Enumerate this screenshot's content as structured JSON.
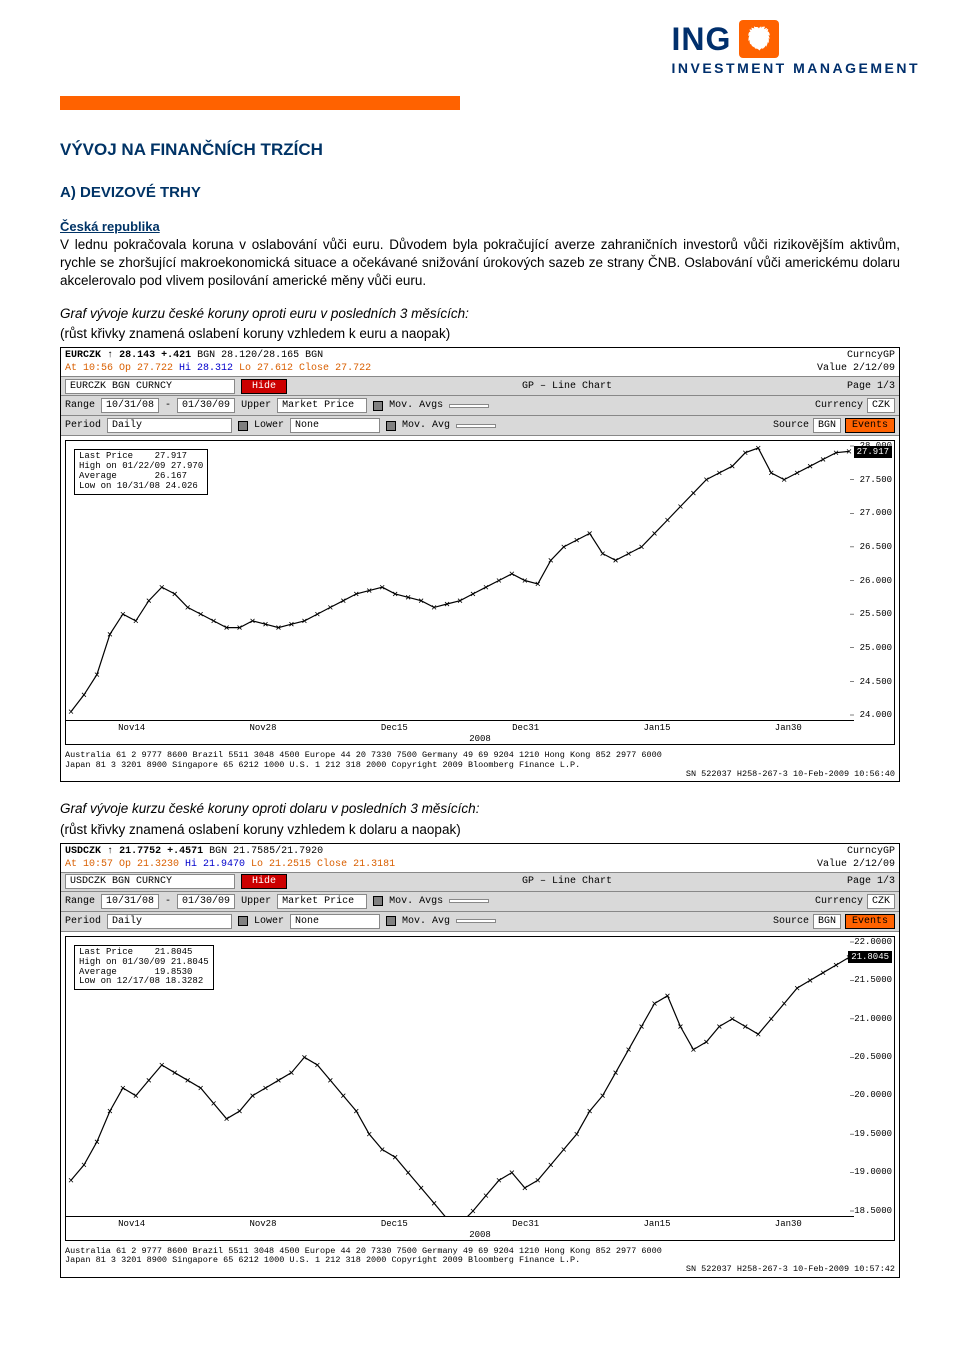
{
  "logo": {
    "brand": "ING",
    "subtitle": "INVESTMENT MANAGEMENT"
  },
  "title": "VÝVOJ NA FINANČNÍCH TRZÍCH",
  "sectionA": "A) DEVIZOVÉ TRHY",
  "country": "Česká republika",
  "para1": "V lednu pokračovala koruna v oslabování vůči euru. Důvodem byla pokračující averze zahraničních investorů vůči rizikovějším aktivům, rychle se zhoršující makroekonomická situace a očekávané snižování úrokových sazeb ze strany ČNB. Oslabování vůči americkému dolaru akcelerovalo pod vlivem posilování americké měny vůči euru.",
  "chart1_caption": "Graf vývoje kurzu české koruny oproti euru v posledních 3 měsících:",
  "chart1_sub": "(růst křivky znamená oslabení koruny vzhledem k euru a naopak)",
  "chart2_caption": "Graf vývoje kurzu české koruny oproti dolaru v posledních 3 měsících:",
  "chart2_sub": "(růst křivky znamená oslabení koruny vzhledem k dolaru a naopak)",
  "chart1": {
    "type": "line",
    "symbol": "EURCZK",
    "arrow": "↑",
    "last": "28.143",
    "change": "+.421",
    "bgn_hl": "BGN  28.120/28.165 BGN",
    "label_right": "CurncyGP",
    "line2": "At 10:56 Op 27.722 Hi 28.312 Lo 27.612 Close 27.722",
    "value_date": "Value    2/12/09",
    "security_name": "EURCZK BGN CURNCY",
    "gp_label": "GP – Line Chart",
    "page": "Page 1/3",
    "range_from": "10/31/08",
    "range_to": "01/30/09",
    "upper": "Market Price",
    "mov_avgs": "Mov. Avgs",
    "currency": "CZK",
    "period": "Daily",
    "lower": "None",
    "mov_avg": "Mov. Avg",
    "source": "BGN",
    "events": "Events",
    "stats": {
      "last_price_lbl": "Last Price",
      "last_price": "27.917",
      "high_lbl": "High on 01/22/09",
      "high": "27.970",
      "avg_lbl": "Average",
      "avg": "26.167",
      "low_lbl": "Low on 10/31/08",
      "low": "24.026"
    },
    "ylim": [
      24.0,
      28.0
    ],
    "ytick_step": 0.5,
    "yticks": [
      "28.000",
      "27.500",
      "27.000",
      "26.500",
      "26.000",
      "25.500",
      "25.000",
      "24.500",
      "24.000"
    ],
    "last_y_label": "27.917",
    "xlabels": [
      "Nov14",
      "Nov28",
      "Dec15",
      "Dec31",
      "Jan15",
      "Jan30"
    ],
    "xyear": "2008",
    "data": [
      24.05,
      24.3,
      24.6,
      25.2,
      25.5,
      25.4,
      25.7,
      25.9,
      25.8,
      25.6,
      25.5,
      25.4,
      25.3,
      25.3,
      25.4,
      25.35,
      25.3,
      25.35,
      25.4,
      25.5,
      25.6,
      25.7,
      25.8,
      25.85,
      25.9,
      25.8,
      25.75,
      25.7,
      25.6,
      25.65,
      25.7,
      25.8,
      25.9,
      26.0,
      26.1,
      26.0,
      25.95,
      26.3,
      26.5,
      26.6,
      26.7,
      26.4,
      26.3,
      26.4,
      26.5,
      26.7,
      26.9,
      27.1,
      27.3,
      27.5,
      27.6,
      27.7,
      27.9,
      27.97,
      27.6,
      27.5,
      27.6,
      27.7,
      27.8,
      27.9,
      27.92
    ],
    "line_color": "#000000",
    "background_color": "#ffffff",
    "footer1": "Australia 61 2 9777 8600 Brazil 5511 3048 4500 Europe 44 20 7330 7500 Germany 49 69 9204 1210 Hong Kong 852 2977 6000",
    "footer2": "Japan 81 3 3201 8900        Singapore 65 6212 1000        U.S. 1 212 318 2000        Copyright 2009 Bloomberg Finance L.P.",
    "footer3": "SN 522037 H258-267-3 10-Feb-2009 10:56:40"
  },
  "chart2": {
    "type": "line",
    "symbol": "USDCZK",
    "arrow": "↑",
    "last": "21.7752",
    "change": "+.4571",
    "bgn_hl": "BGN  21.7585/21.7920",
    "label_right": "CurncyGP",
    "line2": "At 10:57 Op 21.3230 Hi 21.9470 Lo 21.2515 Close 21.3181",
    "value_date": "Value    2/12/09",
    "security_name": "USDCZK BGN CURNCY",
    "gp_label": "GP – Line Chart",
    "page": "Page 1/3",
    "range_from": "10/31/08",
    "range_to": "01/30/09",
    "upper": "Market Price",
    "mov_avgs": "Mov. Avgs",
    "currency": "CZK",
    "period": "Daily",
    "lower": "None",
    "mov_avg": "Mov. Avg",
    "source": "BGN",
    "events": "Events",
    "stats": {
      "last_price_lbl": "Last Price",
      "last_price": "21.8045",
      "high_lbl": "High on 01/30/09",
      "high": "21.8045",
      "avg_lbl": "Average",
      "avg": "19.8530",
      "low_lbl": "Low on 12/17/08",
      "low": "18.3282"
    },
    "ylim": [
      18.5,
      22.0
    ],
    "ytick_step": 0.5,
    "yticks": [
      "22.0000",
      "21.5000",
      "21.0000",
      "20.5000",
      "20.0000",
      "19.5000",
      "19.0000",
      "18.5000"
    ],
    "last_y_label": "21.8045",
    "xlabels": [
      "Nov14",
      "Nov28",
      "Dec15",
      "Dec31",
      "Jan15",
      "Jan30"
    ],
    "xyear": "2008",
    "data": [
      18.9,
      19.1,
      19.4,
      19.8,
      20.1,
      20.0,
      20.2,
      20.4,
      20.3,
      20.2,
      20.1,
      19.9,
      19.7,
      19.8,
      20.0,
      20.1,
      20.2,
      20.3,
      20.5,
      20.4,
      20.2,
      20.0,
      19.8,
      19.5,
      19.3,
      19.2,
      19.0,
      18.8,
      18.6,
      18.4,
      18.33,
      18.5,
      18.7,
      18.9,
      19.0,
      18.8,
      18.9,
      19.1,
      19.3,
      19.5,
      19.8,
      20.0,
      20.3,
      20.6,
      20.9,
      21.2,
      21.3,
      20.9,
      20.6,
      20.7,
      20.9,
      21.0,
      20.9,
      20.8,
      21.0,
      21.2,
      21.4,
      21.5,
      21.6,
      21.7,
      21.8
    ],
    "line_color": "#000000",
    "background_color": "#ffffff",
    "footer1": "Australia 61 2 9777 8600 Brazil 5511 3048 4500 Europe 44 20 7330 7500 Germany 49 69 9204 1210 Hong Kong 852 2977 6000",
    "footer2": "Japan 81 3 3201 8900        Singapore 65 6212 1000        U.S. 1 212 318 2000        Copyright 2009 Bloomberg Finance L.P.",
    "footer3": "SN 522037 H258-267-3 10-Feb-2009 10:57:42"
  }
}
